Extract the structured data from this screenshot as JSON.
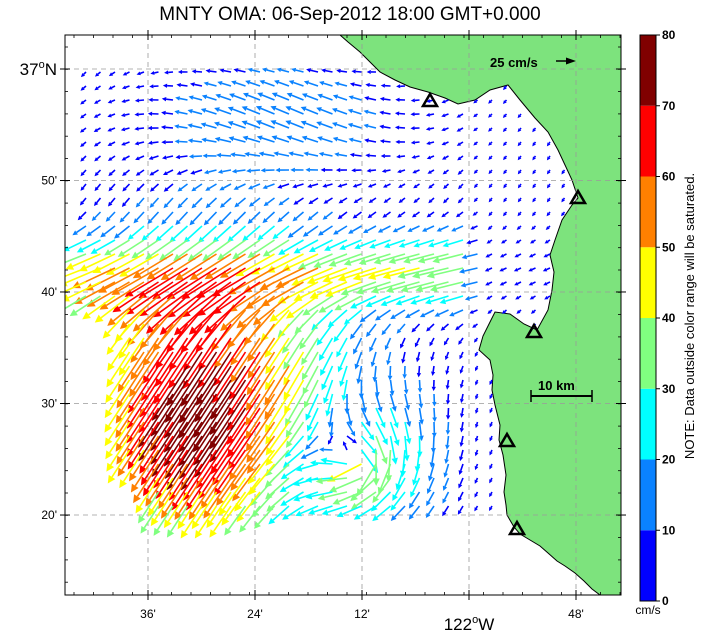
{
  "title": "MNTY OMA: 06-Sep-2012 18:00 GMT+0.000",
  "lat_labels": [
    {
      "text": "37",
      "sup": "o",
      "suffix": "N",
      "lat": 37.0,
      "big": true
    },
    {
      "text": "50'",
      "lat": 36.8333
    },
    {
      "text": "40'",
      "lat": 36.6667
    },
    {
      "text": "30'",
      "lat": 36.5
    },
    {
      "text": "20'",
      "lat": 36.3333
    }
  ],
  "lon_labels": [
    {
      "text": "36'",
      "lon": -122.6
    },
    {
      "text": "24'",
      "lon": -122.4
    },
    {
      "text": "12'",
      "lon": -122.2
    },
    {
      "text": "122",
      "sup": "o",
      "suffix": "W",
      "lon": -122.0,
      "big": true
    },
    {
      "text": "48'",
      "lon": -121.8
    }
  ],
  "scale_arrow_label": "25 cm/s",
  "scale_bar_label": "10 km",
  "colorbar": {
    "ticks": [
      "0",
      "10",
      "20",
      "30",
      "40",
      "50",
      "60",
      "70",
      "80"
    ],
    "unit": "cm/s",
    "colors": [
      "#0000ff",
      "#0a82ff",
      "#00ffff",
      "#80ff80",
      "#ffff00",
      "#ff8000",
      "#ff0000",
      "#800000"
    ],
    "note": "NOTE: Data outside color range will be saturated."
  },
  "colors": {
    "land": "#7de37d",
    "coast": "#000000"
  }
}
